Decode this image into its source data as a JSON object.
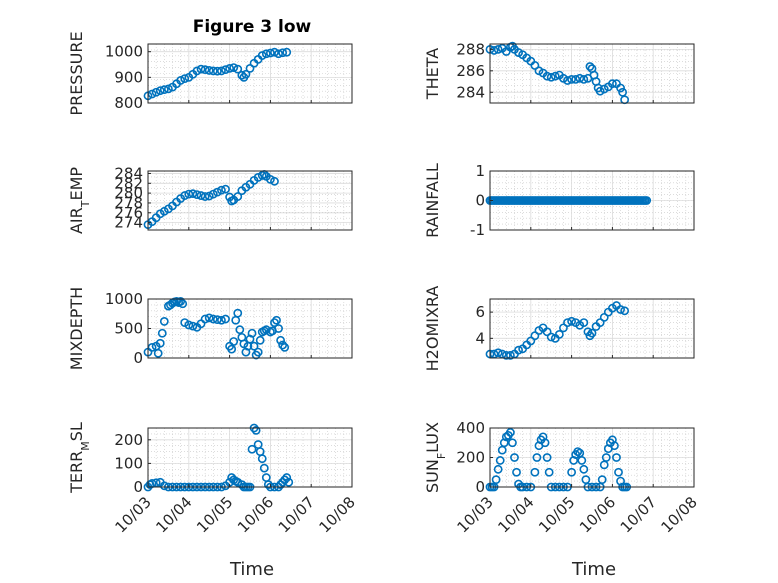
{
  "chart_data": {
    "type": "scatter",
    "title": "Figure 3 low",
    "xlabel": "Time",
    "x_ticks": [
      "10/03",
      "10/04",
      "10/05",
      "10/06",
      "10/07",
      "10/08"
    ],
    "marker_color": "#0072BD",
    "grid": true,
    "panels": [
      {
        "ylabel": "PRESSURE",
        "ylim": [
          800,
          1030
        ],
        "yticks": [
          800,
          900,
          1000
        ],
        "points": [
          [
            3.0,
            828
          ],
          [
            3.1,
            835
          ],
          [
            3.2,
            842
          ],
          [
            3.3,
            848
          ],
          [
            3.4,
            852
          ],
          [
            3.5,
            855
          ],
          [
            3.6,
            862
          ],
          [
            3.7,
            875
          ],
          [
            3.8,
            888
          ],
          [
            3.9,
            895
          ],
          [
            4.0,
            900
          ],
          [
            4.1,
            912
          ],
          [
            4.2,
            925
          ],
          [
            4.3,
            932
          ],
          [
            4.4,
            930
          ],
          [
            4.5,
            927
          ],
          [
            4.6,
            925
          ],
          [
            4.7,
            924
          ],
          [
            4.8,
            925
          ],
          [
            4.9,
            930
          ],
          [
            5.0,
            935
          ],
          [
            5.1,
            938
          ],
          [
            5.2,
            932
          ],
          [
            5.3,
            908
          ],
          [
            5.35,
            900
          ],
          [
            5.4,
            912
          ],
          [
            5.5,
            935
          ],
          [
            5.6,
            955
          ],
          [
            5.7,
            970
          ],
          [
            5.8,
            985
          ],
          [
            5.9,
            992
          ],
          [
            6.0,
            995
          ],
          [
            6.1,
            998
          ],
          [
            6.2,
            992
          ],
          [
            6.3,
            996
          ],
          [
            6.4,
            998
          ]
        ]
      },
      {
        "ylabel": "THETA",
        "ylim": [
          283,
          288.5
        ],
        "yticks": [
          284,
          286,
          288
        ],
        "points": [
          [
            3.0,
            288.0
          ],
          [
            3.1,
            287.9
          ],
          [
            3.2,
            288.0
          ],
          [
            3.3,
            288.1
          ],
          [
            3.4,
            287.8
          ],
          [
            3.5,
            288.2
          ],
          [
            3.55,
            288.3
          ],
          [
            3.6,
            288.0
          ],
          [
            3.7,
            287.7
          ],
          [
            3.8,
            287.5
          ],
          [
            3.9,
            287.2
          ],
          [
            4.0,
            286.9
          ],
          [
            4.1,
            286.5
          ],
          [
            4.2,
            286.0
          ],
          [
            4.3,
            285.8
          ],
          [
            4.4,
            285.5
          ],
          [
            4.5,
            285.4
          ],
          [
            4.6,
            285.5
          ],
          [
            4.7,
            285.6
          ],
          [
            4.8,
            285.3
          ],
          [
            4.9,
            285.1
          ],
          [
            5.0,
            285.2
          ],
          [
            5.1,
            285.2
          ],
          [
            5.2,
            285.3
          ],
          [
            5.3,
            285.2
          ],
          [
            5.4,
            285.3
          ],
          [
            5.45,
            286.4
          ],
          [
            5.5,
            286.2
          ],
          [
            5.55,
            285.6
          ],
          [
            5.6,
            285.0
          ],
          [
            5.65,
            284.4
          ],
          [
            5.7,
            284.1
          ],
          [
            5.8,
            284.3
          ],
          [
            5.9,
            284.5
          ],
          [
            6.0,
            284.8
          ],
          [
            6.1,
            284.8
          ],
          [
            6.2,
            284.4
          ],
          [
            6.25,
            284.0
          ],
          [
            6.3,
            283.3
          ]
        ]
      },
      {
        "ylabel": "AIR_TEMP",
        "ylim": [
          272.5,
          284.5
        ],
        "yticks": [
          274,
          276,
          278,
          280,
          282,
          284
        ],
        "points": [
          [
            3.0,
            273.6
          ],
          [
            3.1,
            274.2
          ],
          [
            3.2,
            275.0
          ],
          [
            3.3,
            275.8
          ],
          [
            3.4,
            276.3
          ],
          [
            3.5,
            276.8
          ],
          [
            3.6,
            277.4
          ],
          [
            3.7,
            278.2
          ],
          [
            3.8,
            278.9
          ],
          [
            3.9,
            279.5
          ],
          [
            4.0,
            279.8
          ],
          [
            4.1,
            279.9
          ],
          [
            4.2,
            279.7
          ],
          [
            4.3,
            279.5
          ],
          [
            4.4,
            279.3
          ],
          [
            4.5,
            279.4
          ],
          [
            4.6,
            279.8
          ],
          [
            4.7,
            280.2
          ],
          [
            4.8,
            280.6
          ],
          [
            4.9,
            280.8
          ],
          [
            5.0,
            279.2
          ],
          [
            5.05,
            278.4
          ],
          [
            5.1,
            278.6
          ],
          [
            5.2,
            279.3
          ],
          [
            5.3,
            280.5
          ],
          [
            5.4,
            281.2
          ],
          [
            5.5,
            281.8
          ],
          [
            5.6,
            282.6
          ],
          [
            5.7,
            283.2
          ],
          [
            5.8,
            283.6
          ],
          [
            5.85,
            283.8
          ],
          [
            5.9,
            283.4
          ],
          [
            6.0,
            282.8
          ],
          [
            6.1,
            282.4
          ]
        ]
      },
      {
        "ylabel": "RAINFALL",
        "ylim": [
          -1,
          1
        ],
        "yticks": [
          -1,
          0,
          1
        ],
        "constant": 0,
        "range": [
          3.0,
          6.85
        ],
        "step": 0.04
      },
      {
        "ylabel": "MIXDEPTH",
        "ylim": [
          0,
          1000
        ],
        "yticks": [
          0,
          500,
          1000
        ],
        "points": [
          [
            3.0,
            100
          ],
          [
            3.1,
            180
          ],
          [
            3.2,
            200
          ],
          [
            3.25,
            80
          ],
          [
            3.3,
            250
          ],
          [
            3.35,
            420
          ],
          [
            3.4,
            620
          ],
          [
            3.5,
            880
          ],
          [
            3.55,
            900
          ],
          [
            3.6,
            930
          ],
          [
            3.65,
            950
          ],
          [
            3.7,
            960
          ],
          [
            3.75,
            940
          ],
          [
            3.8,
            960
          ],
          [
            3.85,
            920
          ],
          [
            3.9,
            600
          ],
          [
            4.0,
            560
          ],
          [
            4.1,
            540
          ],
          [
            4.2,
            520
          ],
          [
            4.3,
            580
          ],
          [
            4.4,
            660
          ],
          [
            4.5,
            680
          ],
          [
            4.6,
            660
          ],
          [
            4.7,
            650
          ],
          [
            4.8,
            640
          ],
          [
            4.9,
            660
          ],
          [
            5.0,
            200
          ],
          [
            5.05,
            150
          ],
          [
            5.1,
            280
          ],
          [
            5.15,
            640
          ],
          [
            5.2,
            760
          ],
          [
            5.25,
            480
          ],
          [
            5.3,
            350
          ],
          [
            5.35,
            240
          ],
          [
            5.4,
            100
          ],
          [
            5.45,
            200
          ],
          [
            5.5,
            320
          ],
          [
            5.55,
            420
          ],
          [
            5.6,
            200
          ],
          [
            5.65,
            50
          ],
          [
            5.7,
            100
          ],
          [
            5.75,
            300
          ],
          [
            5.8,
            440
          ],
          [
            5.85,
            460
          ],
          [
            5.9,
            480
          ],
          [
            6.0,
            440
          ],
          [
            6.05,
            460
          ],
          [
            6.1,
            600
          ],
          [
            6.15,
            640
          ],
          [
            6.2,
            500
          ],
          [
            6.25,
            300
          ],
          [
            6.3,
            220
          ],
          [
            6.35,
            180
          ]
        ]
      },
      {
        "ylabel": "H2OMIXRA",
        "ylim": [
          2.5,
          7.0
        ],
        "yticks": [
          4,
          6
        ],
        "points": [
          [
            3.0,
            2.8
          ],
          [
            3.1,
            2.8
          ],
          [
            3.2,
            2.9
          ],
          [
            3.3,
            2.8
          ],
          [
            3.4,
            2.7
          ],
          [
            3.5,
            2.7
          ],
          [
            3.6,
            2.8
          ],
          [
            3.7,
            3.1
          ],
          [
            3.8,
            3.2
          ],
          [
            3.9,
            3.5
          ],
          [
            4.0,
            3.8
          ],
          [
            4.1,
            4.2
          ],
          [
            4.2,
            4.6
          ],
          [
            4.3,
            4.8
          ],
          [
            4.4,
            4.5
          ],
          [
            4.5,
            4.1
          ],
          [
            4.6,
            4.0
          ],
          [
            4.7,
            4.3
          ],
          [
            4.8,
            4.8
          ],
          [
            4.9,
            5.2
          ],
          [
            5.0,
            5.3
          ],
          [
            5.1,
            5.2
          ],
          [
            5.2,
            5.0
          ],
          [
            5.3,
            5.2
          ],
          [
            5.4,
            4.5
          ],
          [
            5.45,
            4.2
          ],
          [
            5.5,
            4.4
          ],
          [
            5.6,
            4.9
          ],
          [
            5.7,
            5.2
          ],
          [
            5.8,
            5.6
          ],
          [
            5.9,
            6.0
          ],
          [
            6.0,
            6.3
          ],
          [
            6.1,
            6.5
          ],
          [
            6.2,
            6.2
          ],
          [
            6.3,
            6.1
          ]
        ]
      },
      {
        "ylabel": "TERR_MSL",
        "ylim": [
          0,
          250
        ],
        "yticks": [
          0,
          100,
          200
        ],
        "points": [
          [
            3.0,
            0
          ],
          [
            3.05,
            10
          ],
          [
            3.1,
            15
          ],
          [
            3.2,
            18
          ],
          [
            3.3,
            20
          ],
          [
            3.4,
            5
          ],
          [
            3.5,
            0
          ],
          [
            3.6,
            0
          ],
          [
            3.7,
            0
          ],
          [
            3.8,
            0
          ],
          [
            3.9,
            0
          ],
          [
            4.0,
            0
          ],
          [
            4.1,
            0
          ],
          [
            4.2,
            0
          ],
          [
            4.3,
            0
          ],
          [
            4.4,
            0
          ],
          [
            4.5,
            0
          ],
          [
            4.6,
            0
          ],
          [
            4.7,
            0
          ],
          [
            4.8,
            0
          ],
          [
            4.9,
            5
          ],
          [
            5.0,
            20
          ],
          [
            5.05,
            40
          ],
          [
            5.1,
            30
          ],
          [
            5.15,
            25
          ],
          [
            5.2,
            20
          ],
          [
            5.3,
            10
          ],
          [
            5.35,
            0
          ],
          [
            5.4,
            0
          ],
          [
            5.45,
            0
          ],
          [
            5.5,
            0
          ],
          [
            5.55,
            160
          ],
          [
            5.6,
            250
          ],
          [
            5.65,
            240
          ],
          [
            5.7,
            180
          ],
          [
            5.75,
            150
          ],
          [
            5.8,
            120
          ],
          [
            5.85,
            80
          ],
          [
            5.9,
            40
          ],
          [
            5.95,
            10
          ],
          [
            6.0,
            0
          ],
          [
            6.1,
            0
          ],
          [
            6.2,
            0
          ],
          [
            6.25,
            10
          ],
          [
            6.3,
            20
          ],
          [
            6.35,
            30
          ],
          [
            6.4,
            40
          ],
          [
            6.45,
            20
          ]
        ]
      },
      {
        "ylabel": "SUN_FLUX",
        "ylim": [
          0,
          400
        ],
        "yticks": [
          0,
          200,
          400
        ],
        "points": [
          [
            3.0,
            0
          ],
          [
            3.05,
            0
          ],
          [
            3.1,
            0
          ],
          [
            3.15,
            50
          ],
          [
            3.2,
            120
          ],
          [
            3.25,
            180
          ],
          [
            3.3,
            250
          ],
          [
            3.35,
            300
          ],
          [
            3.4,
            340
          ],
          [
            3.45,
            350
          ],
          [
            3.5,
            370
          ],
          [
            3.55,
            300
          ],
          [
            3.6,
            200
          ],
          [
            3.65,
            100
          ],
          [
            3.7,
            20
          ],
          [
            3.75,
            0
          ],
          [
            3.8,
            0
          ],
          [
            3.9,
            0
          ],
          [
            4.0,
            0
          ],
          [
            4.1,
            100
          ],
          [
            4.15,
            200
          ],
          [
            4.2,
            280
          ],
          [
            4.25,
            320
          ],
          [
            4.3,
            340
          ],
          [
            4.35,
            300
          ],
          [
            4.4,
            200
          ],
          [
            4.45,
            100
          ],
          [
            4.5,
            0
          ],
          [
            4.6,
            0
          ],
          [
            4.7,
            0
          ],
          [
            4.8,
            0
          ],
          [
            4.9,
            0
          ],
          [
            5.0,
            100
          ],
          [
            5.05,
            180
          ],
          [
            5.1,
            220
          ],
          [
            5.15,
            240
          ],
          [
            5.2,
            230
          ],
          [
            5.25,
            180
          ],
          [
            5.3,
            120
          ],
          [
            5.35,
            50
          ],
          [
            5.4,
            0
          ],
          [
            5.5,
            0
          ],
          [
            5.6,
            0
          ],
          [
            5.7,
            0
          ],
          [
            5.75,
            50
          ],
          [
            5.8,
            150
          ],
          [
            5.85,
            200
          ],
          [
            5.9,
            260
          ],
          [
            5.95,
            300
          ],
          [
            6.0,
            320
          ],
          [
            6.05,
            280
          ],
          [
            6.1,
            200
          ],
          [
            6.15,
            100
          ],
          [
            6.2,
            40
          ],
          [
            6.25,
            0
          ],
          [
            6.3,
            0
          ],
          [
            6.35,
            0
          ]
        ]
      }
    ]
  }
}
